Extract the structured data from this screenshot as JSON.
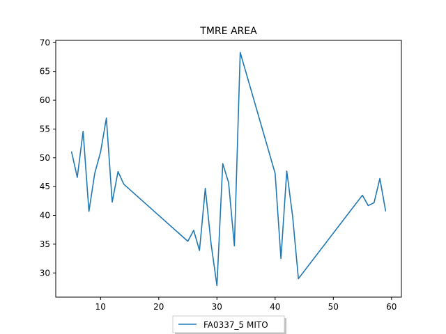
{
  "chart_data": {
    "type": "line",
    "title": "TMRE AREA",
    "xlabel": "",
    "ylabel": "",
    "xlim": [
      2.3,
      61.7
    ],
    "ylim": [
      25.8,
      70.4
    ],
    "xticks": [
      10,
      20,
      30,
      40,
      50,
      60
    ],
    "yticks": [
      30,
      35,
      40,
      45,
      50,
      55,
      60,
      65,
      70
    ],
    "grid": false,
    "legend_position": "bottom-center",
    "series": [
      {
        "name": "FA0337_5 MITO",
        "color": "#1f77b4",
        "x": [
          5,
          6,
          7,
          8,
          9,
          10,
          11,
          12,
          13,
          14,
          25,
          26,
          27,
          28,
          29,
          30,
          31,
          32,
          33,
          34,
          40,
          41,
          42,
          43,
          44,
          55,
          56,
          57,
          58,
          59
        ],
        "y": [
          51.1,
          46.6,
          54.6,
          40.7,
          47.3,
          51.0,
          56.9,
          42.3,
          47.6,
          45.4,
          35.5,
          37.4,
          33.9,
          44.7,
          35.0,
          27.8,
          49.0,
          45.7,
          34.7,
          68.3,
          47.3,
          32.5,
          47.7,
          39.9,
          29.0,
          43.5,
          41.7,
          42.2,
          46.4,
          40.7
        ]
      }
    ]
  }
}
